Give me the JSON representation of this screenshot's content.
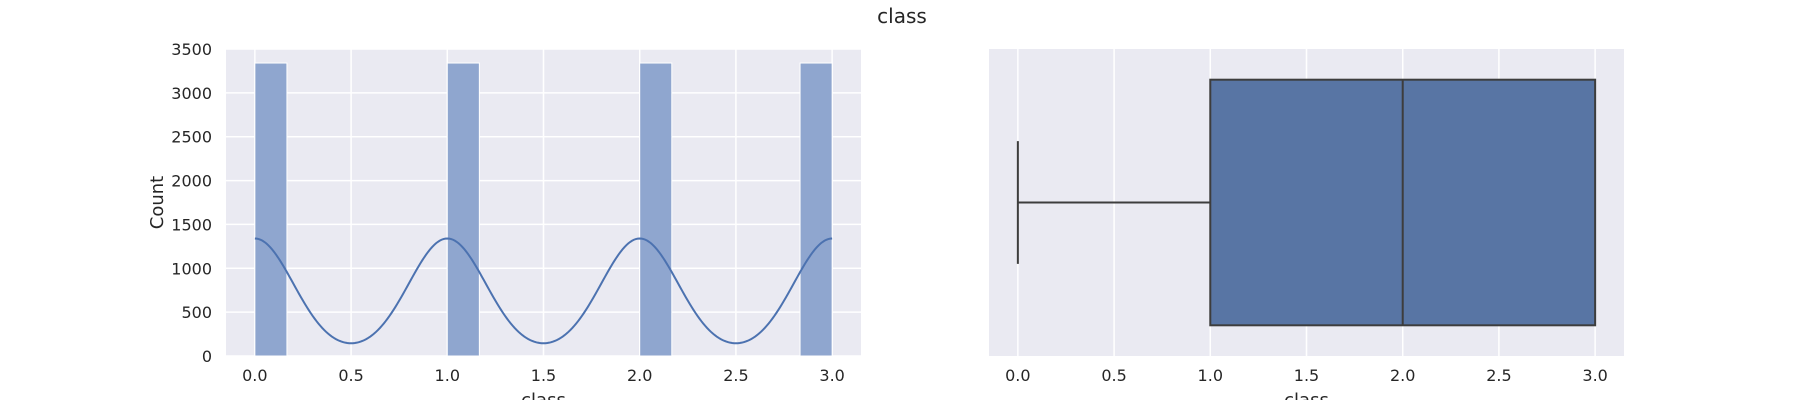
{
  "figure": {
    "title": "class"
  },
  "colors": {
    "background": "#eaeaf2",
    "grid": "#ffffff",
    "bar_fill": "#8fa6cf",
    "kde_line": "#4c72b0",
    "box_fill": "#5875a4",
    "box_edge": "#3d3d3d"
  },
  "chart_data": [
    {
      "type": "bar",
      "subtype": "histogram-with-kde",
      "title": "",
      "xlabel": "class",
      "ylabel": "Count",
      "xlim": [
        -0.15,
        3.15
      ],
      "ylim": [
        0,
        3500
      ],
      "xticks": [
        0.0,
        0.5,
        1.0,
        1.5,
        2.0,
        2.5,
        3.0
      ],
      "xtick_labels": [
        "0.0",
        "0.5",
        "1.0",
        "1.5",
        "2.0",
        "2.5",
        "3.0"
      ],
      "yticks": [
        0,
        500,
        1000,
        1500,
        2000,
        2500,
        3000,
        3500
      ],
      "ytick_labels": [
        "0",
        "500",
        "1000",
        "1500",
        "2000",
        "2500",
        "3000",
        "3500"
      ],
      "bars": [
        {
          "x0": 0.0,
          "x1": 0.1667,
          "value": 3340
        },
        {
          "x0": 1.0,
          "x1": 1.1667,
          "value": 3340
        },
        {
          "x0": 2.0,
          "x1": 2.1667,
          "value": 3340
        },
        {
          "x0": 2.8333,
          "x1": 3.0,
          "value": 3340
        }
      ],
      "kde": {
        "peaks_at": [
          0,
          1,
          2,
          3
        ],
        "peak_value": 1340,
        "trough_value": 30,
        "sigma": 0.2
      },
      "grid": true
    },
    {
      "type": "box",
      "title": "",
      "xlabel": "class",
      "xlim": [
        -0.15,
        3.15
      ],
      "xticks": [
        0.0,
        0.5,
        1.0,
        1.5,
        2.0,
        2.5,
        3.0
      ],
      "xtick_labels": [
        "0.0",
        "0.5",
        "1.0",
        "1.5",
        "2.0",
        "2.5",
        "3.0"
      ],
      "stats": {
        "whislo": 0.0,
        "q1": 1.0,
        "median": 2.0,
        "q3": 3.0,
        "whishi": 3.0
      },
      "grid": true
    }
  ]
}
